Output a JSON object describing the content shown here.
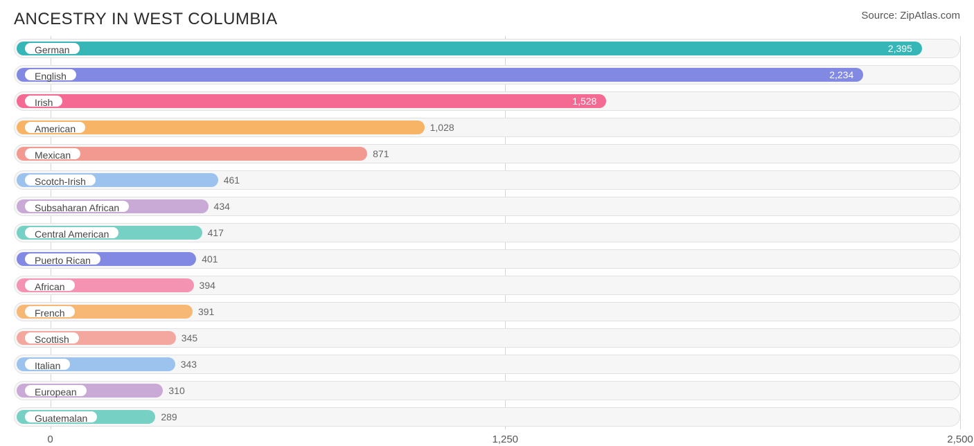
{
  "title": "ANCESTRY IN WEST COLUMBIA",
  "source_label": "Source:",
  "source_value": "ZipAtlas.com",
  "chart": {
    "type": "bar-horizontal",
    "xmin": -100,
    "xmax": 2500,
    "ticks": [
      {
        "value": 0,
        "label": "0"
      },
      {
        "value": 1250,
        "label": "1,250"
      },
      {
        "value": 2500,
        "label": "2,500"
      }
    ],
    "track_bg": "#f6f6f6",
    "track_border": "#e1e1e1",
    "grid_color": "#d7d7d7",
    "label_bg": "#ffffff",
    "value_outside_color": "#666666",
    "value_inside_color": "#ffffff",
    "tick_color": "#555555",
    "title_color": "#2b2b2b",
    "bars": [
      {
        "label": "German",
        "value": 2395,
        "display": "2,395",
        "color": "#37b6b8",
        "value_inside": true
      },
      {
        "label": "English",
        "value": 2234,
        "display": "2,234",
        "color": "#8189e3",
        "value_inside": true
      },
      {
        "label": "Irish",
        "value": 1528,
        "display": "1,528",
        "color": "#f56a93",
        "value_inside": true
      },
      {
        "label": "American",
        "value": 1028,
        "display": "1,028",
        "color": "#f7b467",
        "value_inside": false
      },
      {
        "label": "Mexican",
        "value": 871,
        "display": "871",
        "color": "#f39a90",
        "value_inside": false
      },
      {
        "label": "Scotch-Irish",
        "value": 461,
        "display": "461",
        "color": "#9cc3ed",
        "value_inside": false
      },
      {
        "label": "Subsaharan African",
        "value": 434,
        "display": "434",
        "color": "#c9a9d6",
        "value_inside": false
      },
      {
        "label": "Central American",
        "value": 417,
        "display": "417",
        "color": "#76d1c4",
        "value_inside": false
      },
      {
        "label": "Puerto Rican",
        "value": 401,
        "display": "401",
        "color": "#8189e3",
        "value_inside": false
      },
      {
        "label": "African",
        "value": 394,
        "display": "394",
        "color": "#f494b2",
        "value_inside": false
      },
      {
        "label": "French",
        "value": 391,
        "display": "391",
        "color": "#f7b875",
        "value_inside": false
      },
      {
        "label": "Scottish",
        "value": 345,
        "display": "345",
        "color": "#f3a79f",
        "value_inside": false
      },
      {
        "label": "Italian",
        "value": 343,
        "display": "343",
        "color": "#9cc3ed",
        "value_inside": false
      },
      {
        "label": "European",
        "value": 310,
        "display": "310",
        "color": "#c9a9d6",
        "value_inside": false
      },
      {
        "label": "Guatemalan",
        "value": 289,
        "display": "289",
        "color": "#76d1c4",
        "value_inside": false
      }
    ]
  }
}
